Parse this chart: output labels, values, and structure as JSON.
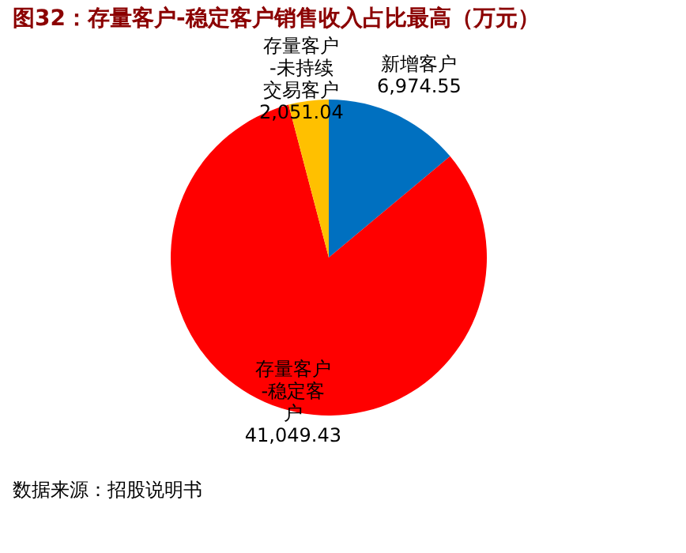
{
  "chart_data": {
    "type": "pie",
    "title": "图32：存量客户-稳定客户销售收入占比最高（万元）",
    "categories": [
      "新增客户",
      "存量客户-稳定客户",
      "存量客户-未持续交易客户"
    ],
    "values": [
      6974.55,
      41049.43,
      2051.04
    ],
    "colors": [
      "#0070c0",
      "#ff0000",
      "#ffc000"
    ],
    "value_labels": [
      "6,974.55",
      "41,049.43",
      "2,051.04"
    ],
    "annotations": [
      "数据来源：招股说明书"
    ]
  }
}
